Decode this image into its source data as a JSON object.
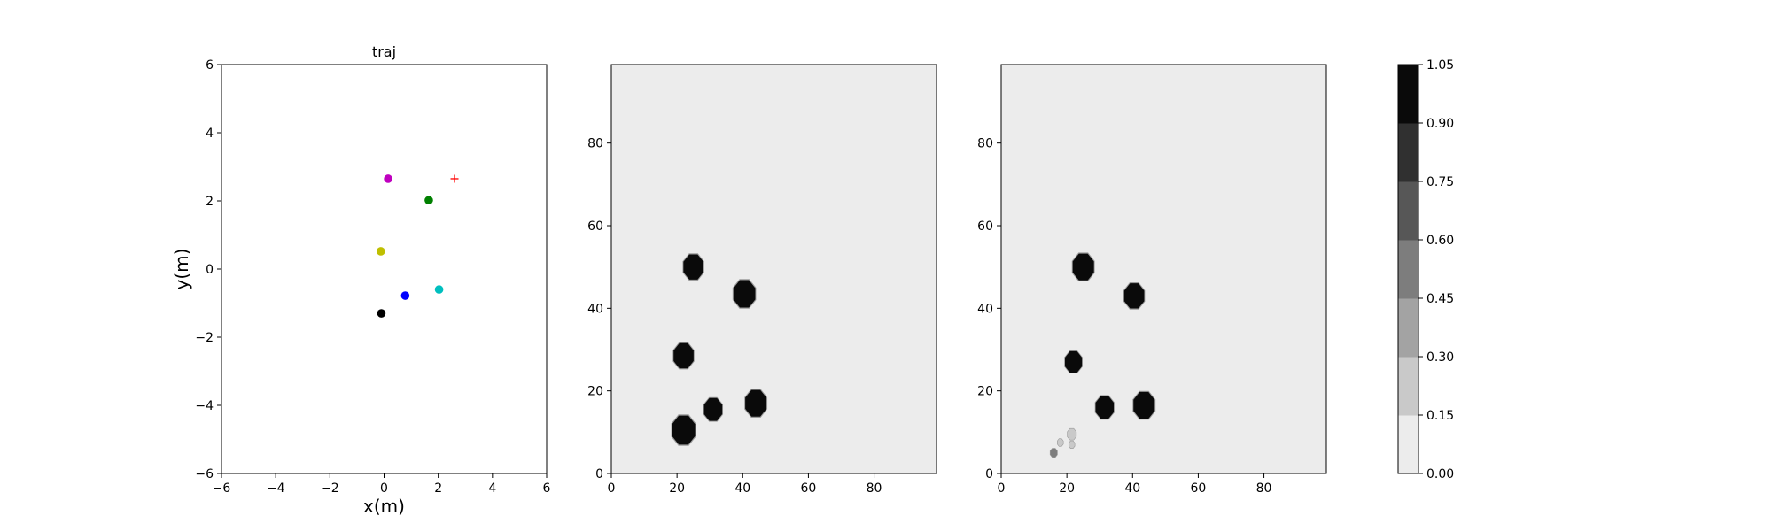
{
  "chart_data": [
    {
      "type": "scatter",
      "title": "traj",
      "xlabel": "x(m)",
      "ylabel": "y(m)",
      "xlim": [
        -6,
        6
      ],
      "ylim": [
        -6,
        6
      ],
      "xticks": [
        "−6",
        "−4",
        "−2",
        "0",
        "2",
        "4",
        "6"
      ],
      "yticks": [
        "−6",
        "−4",
        "−2",
        "0",
        "2",
        "4",
        "6"
      ],
      "points": [
        {
          "x": 0.15,
          "y": 2.65,
          "color": "#bf00bf",
          "marker": "circle"
        },
        {
          "x": 1.65,
          "y": 2.02,
          "color": "#008000",
          "marker": "circle"
        },
        {
          "x": -0.12,
          "y": 0.52,
          "color": "#bfbf00",
          "marker": "circle"
        },
        {
          "x": 2.03,
          "y": -0.6,
          "color": "#00bfbf",
          "marker": "circle"
        },
        {
          "x": 0.78,
          "y": -0.78,
          "color": "#0000ff",
          "marker": "circle"
        },
        {
          "x": -0.1,
          "y": -1.3,
          "color": "#000000",
          "marker": "circle"
        },
        {
          "x": 2.6,
          "y": 2.65,
          "color": "#ff0000",
          "marker": "plus"
        }
      ]
    },
    {
      "type": "heatmap",
      "xlim": [
        0,
        99
      ],
      "ylim": [
        0,
        99
      ],
      "xticks": [
        "0",
        "20",
        "40",
        "60",
        "80"
      ],
      "yticks": [
        "0",
        "20",
        "40",
        "60",
        "80"
      ],
      "background_value": 0.06,
      "blobs": [
        {
          "cx": 25,
          "cy": 50,
          "r": 3.3,
          "value": 1.0
        },
        {
          "cx": 40.5,
          "cy": 43.5,
          "r": 3.6,
          "value": 1.0
        },
        {
          "cx": 22,
          "cy": 28.5,
          "r": 3.3,
          "value": 1.0
        },
        {
          "cx": 31,
          "cy": 15.5,
          "r": 3.0,
          "value": 1.0
        },
        {
          "cx": 44,
          "cy": 17,
          "r": 3.5,
          "value": 1.0
        },
        {
          "cx": 22,
          "cy": 10.5,
          "r": 3.8,
          "value": 1.0
        }
      ]
    },
    {
      "type": "heatmap",
      "xlim": [
        0,
        99
      ],
      "ylim": [
        0,
        99
      ],
      "xticks": [
        "0",
        "20",
        "40",
        "60",
        "80"
      ],
      "yticks": [
        "0",
        "20",
        "40",
        "60",
        "80"
      ],
      "background_value": 0.06,
      "blobs": [
        {
          "cx": 25,
          "cy": 50,
          "r": 3.5,
          "value": 1.0
        },
        {
          "cx": 40.5,
          "cy": 43,
          "r": 3.3,
          "value": 1.0
        },
        {
          "cx": 22,
          "cy": 27,
          "r": 2.8,
          "value": 1.0
        },
        {
          "cx": 31.5,
          "cy": 16,
          "r": 3.0,
          "value": 1.0
        },
        {
          "cx": 43.5,
          "cy": 16.5,
          "r": 3.5,
          "value": 1.0
        },
        {
          "cx": 16,
          "cy": 5,
          "r": 1.2,
          "value": 0.45
        },
        {
          "cx": 18,
          "cy": 7.5,
          "r": 1.0,
          "value": 0.25
        },
        {
          "cx": 21.5,
          "cy": 9.5,
          "r": 1.5,
          "value": 0.2
        },
        {
          "cx": 21.5,
          "cy": 7,
          "r": 1.0,
          "value": 0.2
        }
      ]
    }
  ],
  "colorbar": {
    "vmin": 0,
    "vmax": 1.05,
    "levels": [
      "0.00",
      "0.15",
      "0.30",
      "0.45",
      "0.60",
      "0.75",
      "0.90",
      "1.05"
    ],
    "colors": [
      "#ececec",
      "#c9c9c9",
      "#a3a3a3",
      "#7d7d7d",
      "#575757",
      "#303030",
      "#0a0a0a"
    ]
  }
}
